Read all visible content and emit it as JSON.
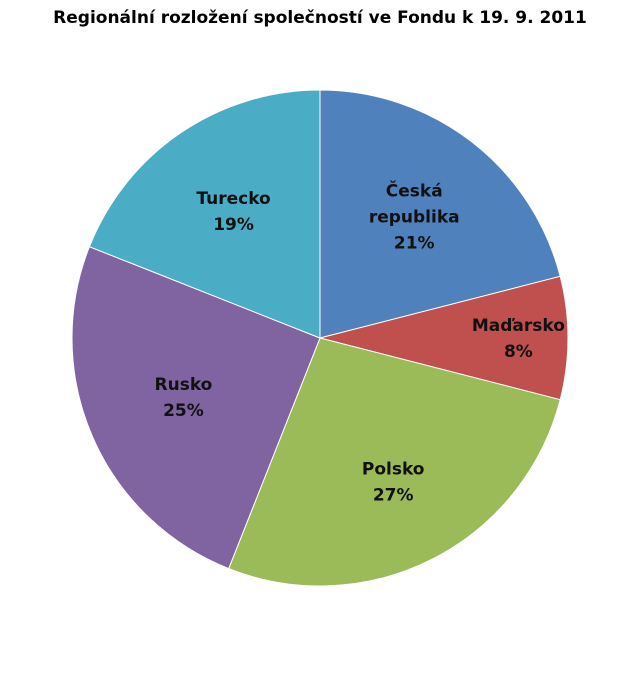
{
  "chart_data": {
    "type": "pie",
    "title": "Regionální rozložení společností ve Fondu k 19. 9. 2011",
    "slices": [
      {
        "name": "Česká republika",
        "label_lines": [
          "Česká",
          "republika"
        ],
        "value": 21,
        "value_label": "21%",
        "color": "#4f81bd"
      },
      {
        "name": "Maďarsko",
        "label_lines": [
          "Maďarsko"
        ],
        "value": 8,
        "value_label": "8%",
        "color": "#c0504d"
      },
      {
        "name": "Polsko",
        "label_lines": [
          "Polsko"
        ],
        "value": 27,
        "value_label": "27%",
        "color": "#9bbb59"
      },
      {
        "name": "Rusko",
        "label_lines": [
          "Rusko"
        ],
        "value": 25,
        "value_label": "25%",
        "color": "#8064a2"
      },
      {
        "name": "Turecko",
        "label_lines": [
          "Turecko"
        ],
        "value": 19,
        "value_label": "19%",
        "color": "#4bacc6"
      }
    ]
  }
}
